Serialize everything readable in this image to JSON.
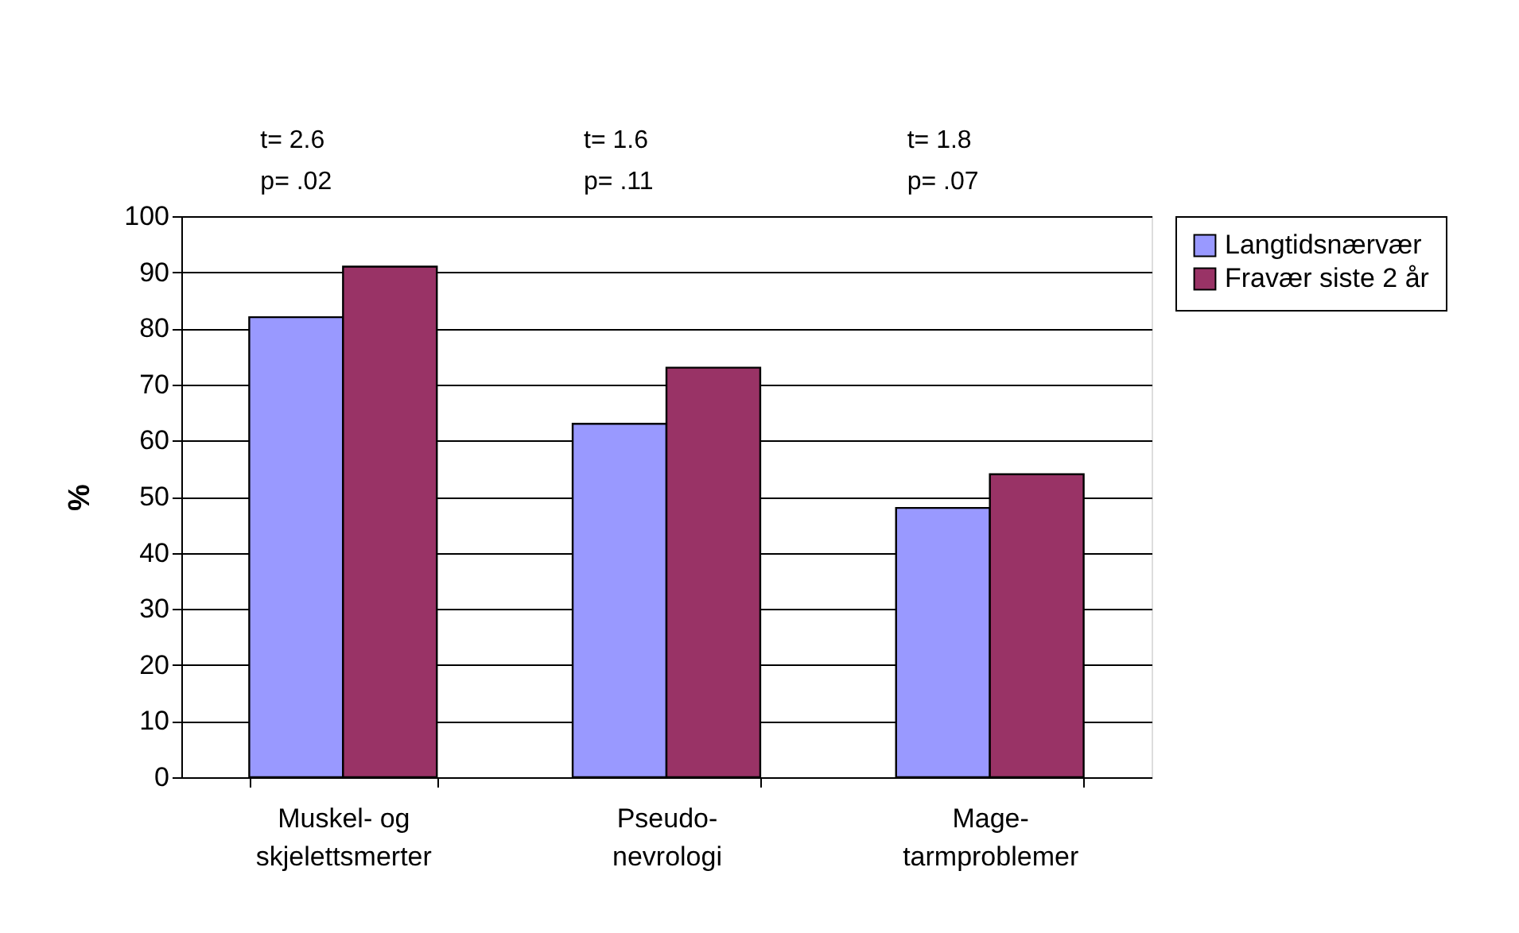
{
  "chart_data": {
    "type": "bar",
    "ylabel": "%",
    "categories": [
      "Muskel- og\nskjelettsmerter",
      "Pseudo-\nnevrologi",
      "Mage-\ntarmproblemer"
    ],
    "series": [
      {
        "name": "Langtidsnærvær",
        "color": "#9999ff",
        "values": [
          82,
          63,
          48
        ]
      },
      {
        "name": "Fravær siste 2 år",
        "color": "#993366",
        "values": [
          91,
          73,
          54
        ]
      }
    ],
    "ylim": [
      0,
      100
    ],
    "yticks": [
      0,
      10,
      20,
      30,
      40,
      50,
      60,
      70,
      80,
      90,
      100
    ],
    "grid": "y",
    "legend": "right",
    "annotations": [
      "t= 2.6\np= .02",
      "t= 1.6\np= .11",
      "t= 1.8\np= .07"
    ]
  }
}
